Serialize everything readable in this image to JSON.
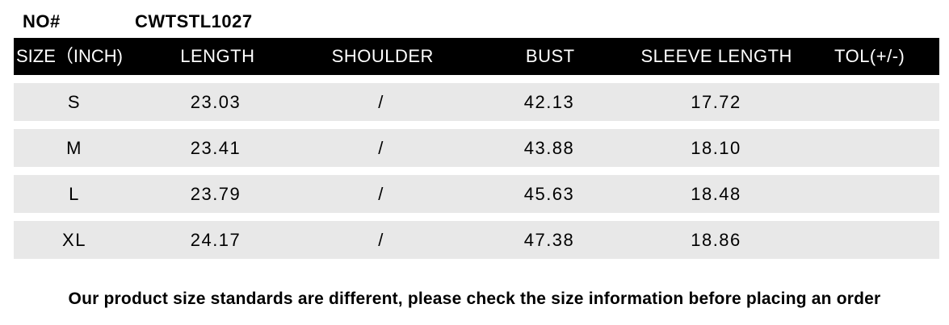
{
  "meta": {
    "no_label": "NO#",
    "product_code": "CWTSTL1027"
  },
  "table": {
    "headers": [
      "SIZE（INCH)",
      "LENGTH",
      "SHOULDER",
      "BUST",
      "SLEEVE LENGTH",
      "TOL(+/-)"
    ],
    "rows": [
      [
        "S",
        "23.03",
        "/",
        "42.13",
        "17.72",
        ""
      ],
      [
        "M",
        "23.41",
        "/",
        "43.88",
        "18.10",
        ""
      ],
      [
        "L",
        "23.79",
        "/",
        "45.63",
        "18.48",
        ""
      ],
      [
        "XL",
        "24.17",
        "/",
        "47.38",
        "18.86",
        ""
      ]
    ]
  },
  "note": "Our product size standards are different, please check the size information before placing an order",
  "colors": {
    "header_bg": "#000000",
    "header_text": "#ffffff",
    "row_bg": "#e8e8e8",
    "text": "#000000"
  }
}
